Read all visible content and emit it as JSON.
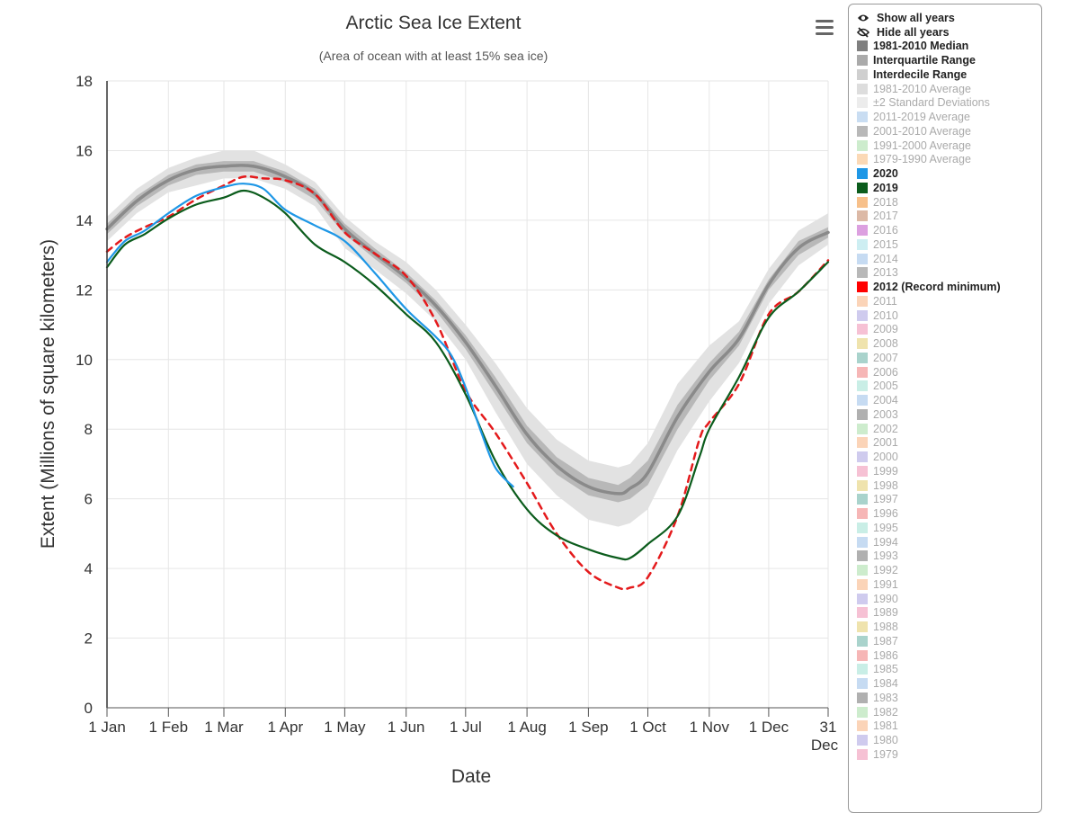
{
  "chart_data": {
    "type": "line",
    "title": "Arctic Sea Ice Extent",
    "subtitle": "(Area of ocean with at least 15% sea ice)",
    "xlabel": "Date",
    "ylabel": "Extent (Millions of square kilometers)",
    "ylim": [
      0,
      18
    ],
    "yticks": [
      0,
      2,
      4,
      6,
      8,
      10,
      12,
      14,
      16,
      18
    ],
    "xlim": [
      1,
      365
    ],
    "xticks": [
      {
        "day": 1,
        "label": "1 Jan"
      },
      {
        "day": 32,
        "label": "1 Feb"
      },
      {
        "day": 60,
        "label": "1 Mar"
      },
      {
        "day": 91,
        "label": "1 Apr"
      },
      {
        "day": 121,
        "label": "1 May"
      },
      {
        "day": 152,
        "label": "1 Jun"
      },
      {
        "day": 182,
        "label": "1 Jul"
      },
      {
        "day": 213,
        "label": "1 Aug"
      },
      {
        "day": 244,
        "label": "1 Sep"
      },
      {
        "day": 274,
        "label": "1 Oct"
      },
      {
        "day": 305,
        "label": "1 Nov"
      },
      {
        "day": 335,
        "label": "1 Dec"
      },
      {
        "day": 365,
        "label": "31",
        "label2": "Dec"
      }
    ],
    "bands": [
      {
        "name": "Interdecile Range",
        "color": "#e2e2e2",
        "x": [
          1,
          16,
          32,
          46,
          60,
          75,
          91,
          106,
          121,
          136,
          152,
          167,
          182,
          197,
          213,
          228,
          244,
          259,
          265,
          274,
          289,
          305,
          320,
          335,
          350,
          365
        ],
        "low": [
          13.4,
          14.2,
          14.8,
          15.0,
          15.2,
          15.2,
          14.9,
          14.4,
          13.2,
          12.6,
          11.9,
          11.1,
          10.0,
          8.5,
          7.0,
          6.1,
          5.4,
          5.2,
          5.3,
          5.7,
          7.4,
          8.8,
          9.9,
          11.6,
          12.7,
          13.3
        ],
        "high": [
          14.1,
          14.9,
          15.5,
          15.8,
          16.0,
          16.0,
          15.6,
          15.1,
          14.1,
          13.4,
          12.8,
          12.0,
          11.0,
          9.9,
          8.6,
          7.7,
          7.1,
          6.9,
          7.0,
          7.6,
          9.3,
          10.4,
          11.1,
          12.6,
          13.7,
          14.2
        ]
      },
      {
        "name": "Interquartile Range",
        "color": "#b8b8b8",
        "x": [
          1,
          16,
          32,
          46,
          60,
          75,
          91,
          106,
          121,
          136,
          152,
          167,
          182,
          197,
          213,
          228,
          244,
          259,
          265,
          274,
          289,
          305,
          320,
          335,
          350,
          365
        ],
        "low": [
          13.6,
          14.4,
          15.0,
          15.3,
          15.4,
          15.4,
          15.1,
          14.6,
          13.6,
          12.9,
          12.2,
          11.4,
          10.3,
          9.0,
          7.6,
          6.7,
          6.1,
          5.9,
          6.0,
          6.4,
          8.0,
          9.4,
          10.4,
          12.0,
          13.0,
          13.5
        ],
        "high": [
          13.9,
          14.7,
          15.3,
          15.6,
          15.7,
          15.7,
          15.4,
          14.9,
          13.9,
          13.2,
          12.5,
          11.7,
          10.7,
          9.5,
          8.1,
          7.2,
          6.6,
          6.4,
          6.6,
          7.1,
          8.7,
          9.9,
          10.8,
          12.3,
          13.4,
          13.8
        ]
      }
    ],
    "series": [
      {
        "name": "1981-2010 Median",
        "color": "#8a8a8a",
        "width": 3.5,
        "dash": "",
        "x": [
          1,
          16,
          32,
          46,
          60,
          75,
          91,
          106,
          121,
          136,
          152,
          167,
          182,
          197,
          213,
          228,
          244,
          259,
          265,
          274,
          289,
          305,
          320,
          335,
          350,
          365
        ],
        "values": [
          13.75,
          14.55,
          15.15,
          15.45,
          15.55,
          15.55,
          15.25,
          14.75,
          13.75,
          13.05,
          12.35,
          11.55,
          10.5,
          9.25,
          7.85,
          6.95,
          6.35,
          6.15,
          6.3,
          6.75,
          8.35,
          9.65,
          10.6,
          12.15,
          13.2,
          13.65
        ]
      },
      {
        "name": "2012 (Record minimum)",
        "color": "#e41a1c",
        "width": 2.5,
        "dash": "7,6",
        "x": [
          1,
          10,
          20,
          32,
          46,
          60,
          70,
          80,
          91,
          106,
          121,
          136,
          152,
          167,
          182,
          197,
          213,
          228,
          244,
          259,
          265,
          274,
          289,
          300,
          305,
          320,
          335,
          350,
          365
        ],
        "values": [
          13.1,
          13.5,
          13.8,
          14.1,
          14.6,
          15.0,
          15.25,
          15.2,
          15.15,
          14.75,
          13.65,
          13.05,
          12.4,
          11.1,
          9.1,
          7.9,
          6.45,
          5.0,
          3.9,
          3.45,
          3.45,
          3.75,
          5.5,
          7.7,
          8.2,
          9.3,
          11.3,
          11.95,
          12.85
        ]
      },
      {
        "name": "2019",
        "color": "#0b5c1c",
        "width": 2.2,
        "dash": "",
        "x": [
          1,
          10,
          20,
          32,
          46,
          60,
          70,
          80,
          91,
          106,
          121,
          136,
          152,
          167,
          182,
          197,
          213,
          228,
          244,
          259,
          265,
          274,
          289,
          300,
          305,
          320,
          335,
          350,
          365
        ],
        "values": [
          12.65,
          13.3,
          13.6,
          14.05,
          14.45,
          14.65,
          14.85,
          14.65,
          14.2,
          13.3,
          12.8,
          12.15,
          11.3,
          10.5,
          9.0,
          7.1,
          5.7,
          4.95,
          4.55,
          4.3,
          4.3,
          4.7,
          5.5,
          7.2,
          8.0,
          9.5,
          11.2,
          11.95,
          12.8
        ]
      },
      {
        "name": "2020",
        "color": "#1e97e6",
        "width": 2.2,
        "dash": "",
        "x": [
          1,
          10,
          20,
          32,
          46,
          60,
          70,
          80,
          91,
          106,
          121,
          136,
          152,
          167,
          175,
          182,
          190,
          197,
          206
        ],
        "values": [
          12.8,
          13.4,
          13.7,
          14.2,
          14.7,
          14.95,
          15.05,
          14.9,
          14.3,
          13.85,
          13.4,
          12.5,
          11.45,
          10.65,
          10.1,
          9.2,
          7.9,
          6.9,
          6.35
        ]
      }
    ]
  },
  "menu": {
    "icon": "hamburger-menu-icon"
  },
  "legend": {
    "controls": [
      {
        "label": "Show all years",
        "icon": "eye-icon"
      },
      {
        "label": "Hide all years",
        "icon": "eye-slash-icon"
      }
    ],
    "items": [
      {
        "label": "1981-2010 Median",
        "color": "#7f7f7f",
        "bold": true
      },
      {
        "label": "Interquartile Range",
        "color": "#aaaaaa",
        "bold": true
      },
      {
        "label": "Interdecile Range",
        "color": "#cfcfcf",
        "bold": true
      },
      {
        "label": "1981-2010 Average",
        "color": "#dddddd",
        "bold": false
      },
      {
        "label": "±2 Standard Deviations",
        "color": "#ececec",
        "bold": false
      },
      {
        "label": "2011-2019 Average",
        "color": "#c9ddf2",
        "bold": false
      },
      {
        "label": "2001-2010 Average",
        "color": "#b8b8b8",
        "bold": false
      },
      {
        "label": "1991-2000 Average",
        "color": "#cdeccd",
        "bold": false
      },
      {
        "label": "1979-1990 Average",
        "color": "#fbd9b6",
        "bold": false
      },
      {
        "label": "2020",
        "color": "#1e97e6",
        "bold": true
      },
      {
        "label": "2019",
        "color": "#0b5c1c",
        "bold": true
      },
      {
        "label": "2018",
        "color": "#f7c08a",
        "bold": false
      },
      {
        "label": "2017",
        "color": "#dcb9a6",
        "bold": false
      },
      {
        "label": "2016",
        "color": "#dca0e0",
        "bold": false
      },
      {
        "label": "2015",
        "color": "#cdeef2",
        "bold": false
      },
      {
        "label": "2014",
        "color": "#c6dbf2",
        "bold": false
      },
      {
        "label": "2013",
        "color": "#b8b8b8",
        "bold": false
      },
      {
        "label": "2012 (Record minimum)",
        "color": "#ff0000",
        "bold": true
      },
      {
        "label": "2011",
        "color": "#fbd4b8",
        "bold": false
      },
      {
        "label": "2010",
        "color": "#cfcbee",
        "bold": false
      },
      {
        "label": "2009",
        "color": "#f6c1d4",
        "bold": false
      },
      {
        "label": "2008",
        "color": "#efe3ad",
        "bold": false
      },
      {
        "label": "2007",
        "color": "#a9d3cc",
        "bold": false
      },
      {
        "label": "2006",
        "color": "#f6b6b6",
        "bold": false
      },
      {
        "label": "2005",
        "color": "#c9eee6",
        "bold": false
      },
      {
        "label": "2004",
        "color": "#c6dbf2",
        "bold": false
      },
      {
        "label": "2003",
        "color": "#b0b0b0",
        "bold": false
      },
      {
        "label": "2002",
        "color": "#cdeccd",
        "bold": false
      },
      {
        "label": "2001",
        "color": "#fbd4b8",
        "bold": false
      },
      {
        "label": "2000",
        "color": "#cfcbee",
        "bold": false
      },
      {
        "label": "1999",
        "color": "#f6c1d4",
        "bold": false
      },
      {
        "label": "1998",
        "color": "#efe3ad",
        "bold": false
      },
      {
        "label": "1997",
        "color": "#a9d3cc",
        "bold": false
      },
      {
        "label": "1996",
        "color": "#f6b6b6",
        "bold": false
      },
      {
        "label": "1995",
        "color": "#c9eee6",
        "bold": false
      },
      {
        "label": "1994",
        "color": "#c6dbf2",
        "bold": false
      },
      {
        "label": "1993",
        "color": "#b0b0b0",
        "bold": false
      },
      {
        "label": "1992",
        "color": "#cdeccd",
        "bold": false
      },
      {
        "label": "1991",
        "color": "#fbd4b8",
        "bold": false
      },
      {
        "label": "1990",
        "color": "#cfcbee",
        "bold": false
      },
      {
        "label": "1989",
        "color": "#f6c1d4",
        "bold": false
      },
      {
        "label": "1988",
        "color": "#efe3ad",
        "bold": false
      },
      {
        "label": "1987",
        "color": "#a9d3cc",
        "bold": false
      },
      {
        "label": "1986",
        "color": "#f6b6b6",
        "bold": false
      },
      {
        "label": "1985",
        "color": "#c9eee6",
        "bold": false
      },
      {
        "label": "1984",
        "color": "#c6dbf2",
        "bold": false
      },
      {
        "label": "1983",
        "color": "#b0b0b0",
        "bold": false
      },
      {
        "label": "1982",
        "color": "#cdeccd",
        "bold": false
      },
      {
        "label": "1981",
        "color": "#fbd4b8",
        "bold": false
      },
      {
        "label": "1980",
        "color": "#cfcbee",
        "bold": false
      },
      {
        "label": "1979",
        "color": "#f6c1d4",
        "bold": false
      }
    ]
  }
}
